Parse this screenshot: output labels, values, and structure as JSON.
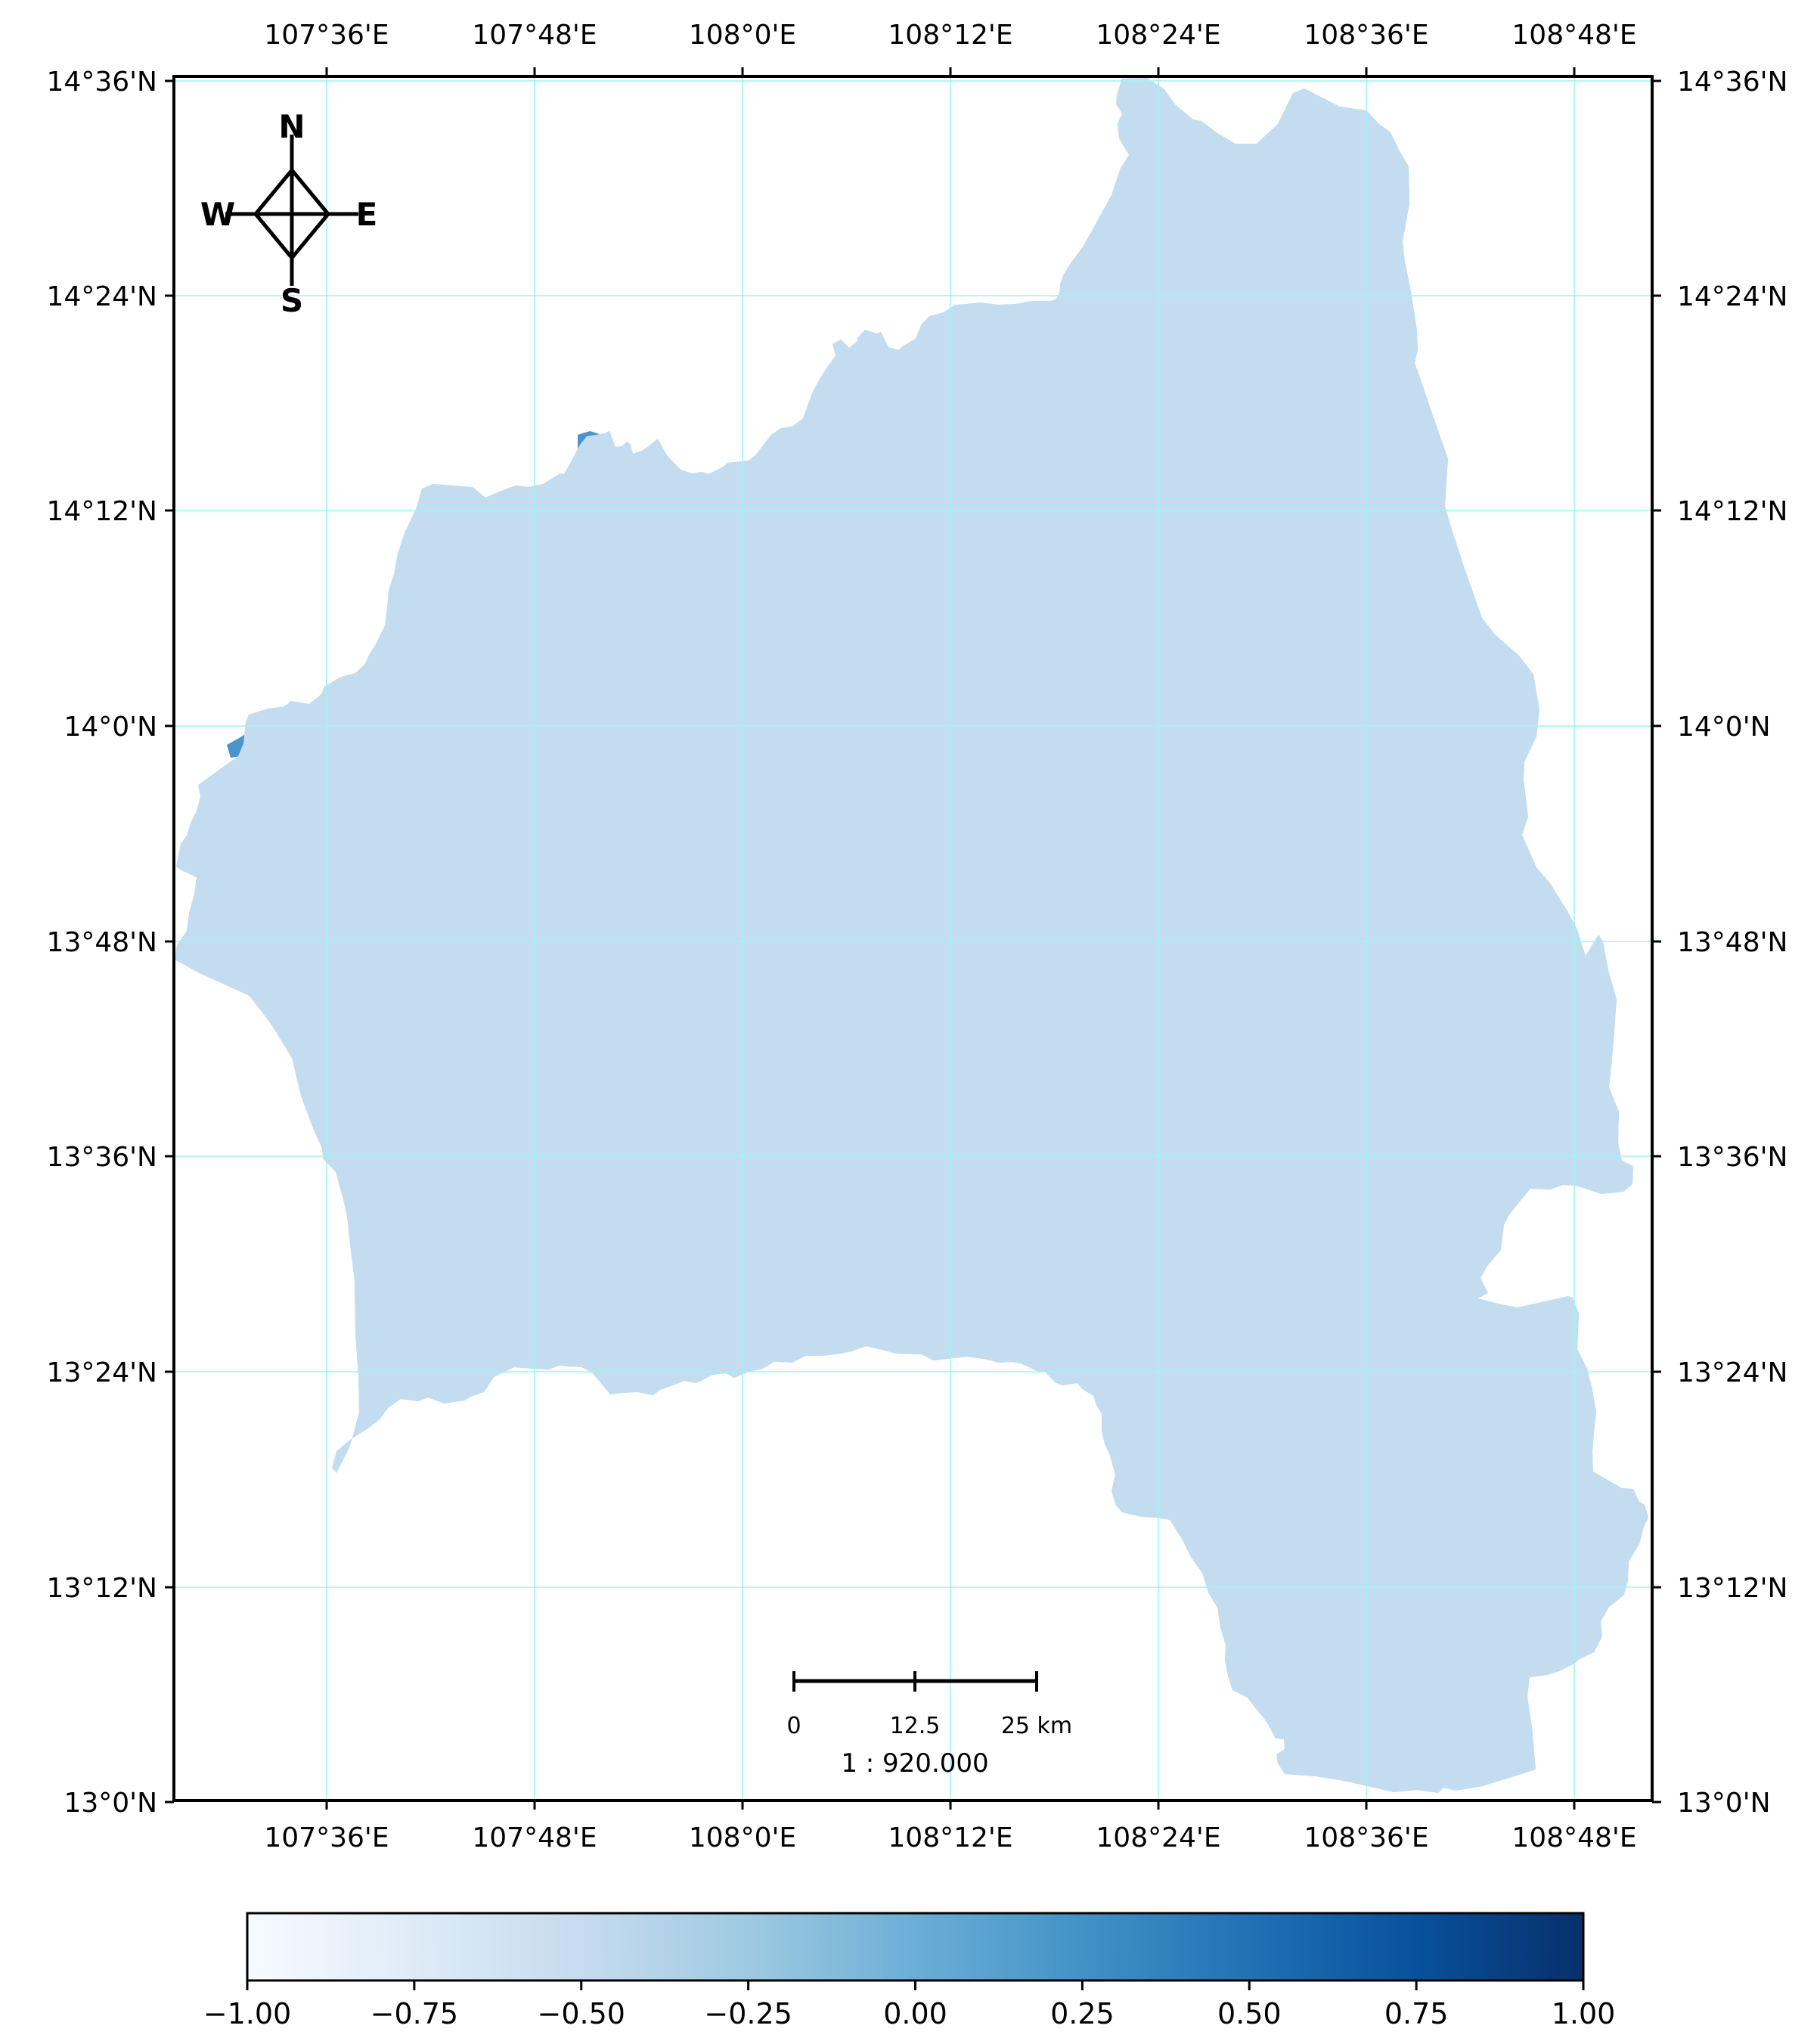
{
  "map": {
    "x_ticks": [
      "107°36'E",
      "107°48'E",
      "108°0'E",
      "108°12'E",
      "108°24'E",
      "108°36'E",
      "108°48'E"
    ],
    "y_ticks": [
      "14°36'N",
      "14°24'N",
      "14°12'N",
      "14°0'N",
      "13°48'N",
      "13°36'N",
      "13°24'N",
      "13°12'N",
      "13°0'N"
    ],
    "graticule": true,
    "region_fill": "#c3dcf0",
    "water_fill": "#4a93cc",
    "outline_color": "#000000",
    "grid_color": "#9ef3f3"
  },
  "compass": {
    "north": "N",
    "south": "S",
    "east": "E",
    "west": "W"
  },
  "scale_bar": {
    "labels": [
      "0",
      "12.5",
      "25 km"
    ],
    "ratio": "1 : 920.000"
  },
  "colorbar": {
    "colormap": "Blues",
    "ticks": [
      "−1.00",
      "−0.75",
      "−0.50",
      "−0.25",
      "0.00",
      "0.25",
      "0.50",
      "0.75",
      "1.00"
    ],
    "colors": [
      "#f7fbff",
      "#deebf7",
      "#c6dbef",
      "#9ecae1",
      "#6baed6",
      "#4292c6",
      "#2171b5",
      "#08519c",
      "#08306b"
    ]
  }
}
